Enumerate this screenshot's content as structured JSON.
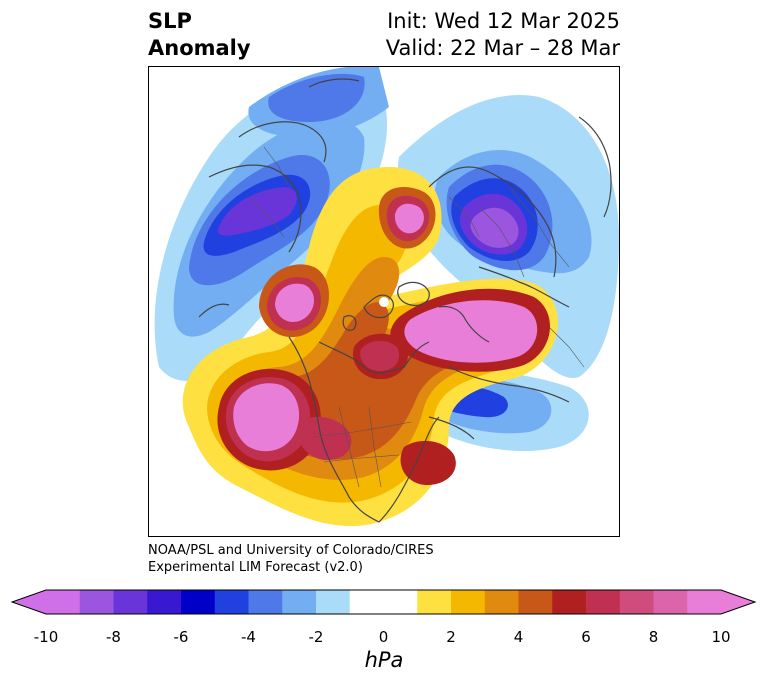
{
  "title": {
    "line1": "SLP",
    "line2": "Anomaly"
  },
  "init_label": "Init: Wed 12 Mar 2025",
  "valid_label": "Valid: 22 Mar – 28 Mar",
  "credit": {
    "line1": "NOAA/PSL and University of Colorado/CIRES",
    "line2": "Experimental LIM Forecast (v2.0)"
  },
  "colorbar": {
    "unit": "hPa",
    "ticks": [
      "-10",
      "-8",
      "-6",
      "-4",
      "-2",
      "0",
      "2",
      "4",
      "6",
      "8",
      "10"
    ],
    "colors": [
      "#d070e8",
      "#9c55df",
      "#6a35d8",
      "#3818d0",
      "#0000c8",
      "#2040e0",
      "#4f78e8",
      "#74aef2",
      "#aadcfa",
      "#ffffff",
      "#ffffff",
      "#fee040",
      "#f5b800",
      "#e08a10",
      "#c85818",
      "#b02020",
      "#c03050",
      "#d04c7c",
      "#dc64aa",
      "#e87ed8"
    ],
    "under_color": "#d070e8",
    "over_color": "#e87ed8"
  }
}
